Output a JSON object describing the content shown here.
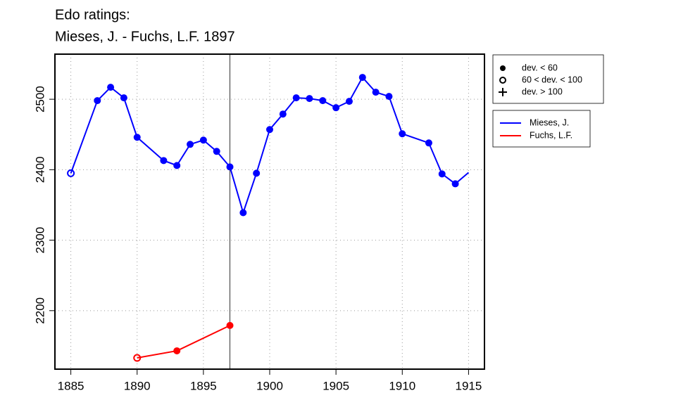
{
  "chart_data": {
    "type": "line",
    "title": "Edo ratings:",
    "subtitle": "Mieses, J. - Fuchs, L.F. 1897",
    "xlim": [
      1883.8,
      1916.2
    ],
    "ylim": [
      2117,
      2564
    ],
    "xticks": [
      1885,
      1890,
      1895,
      1900,
      1905,
      1910,
      1915
    ],
    "yticks": [
      2200,
      2300,
      2400,
      2500
    ],
    "grid": true,
    "vline": 1897,
    "deviation_legend": {
      "labels": [
        "dev. < 60",
        "60 < dev. < 100",
        "dev. > 100"
      ],
      "markers": [
        "solid",
        "open",
        "plus"
      ]
    },
    "legend": "top-right",
    "series": [
      {
        "name": "Mieses, J.",
        "color": "#0000ff",
        "x": [
          1885,
          1887,
          1888,
          1889,
          1890,
          1892,
          1893,
          1894,
          1895,
          1896,
          1897,
          1898,
          1899,
          1900,
          1901,
          1902,
          1903,
          1904,
          1905,
          1906,
          1907,
          1908,
          1909,
          1910,
          1912,
          1913,
          1914,
          1915
        ],
        "values": [
          2395,
          2498,
          2517,
          2502,
          2446,
          2413,
          2406,
          2436,
          2442,
          2426,
          2404,
          2339,
          2395,
          2457,
          2479,
          2502,
          2501,
          2498,
          2488,
          2497,
          2531,
          2510,
          2504,
          2451,
          2438,
          2394,
          2380,
          2396
        ],
        "markers": [
          "open",
          "solid",
          "solid",
          "solid",
          "solid",
          "solid",
          "solid",
          "solid",
          "solid",
          "solid",
          "solid",
          "solid",
          "solid",
          "solid",
          "solid",
          "solid",
          "solid",
          "solid",
          "solid",
          "solid",
          "solid",
          "solid",
          "solid",
          "solid",
          "solid",
          "solid",
          "solid",
          "none"
        ]
      },
      {
        "name": "Fuchs, L.F.",
        "color": "#ff0000",
        "x": [
          1890,
          1893,
          1897
        ],
        "values": [
          2133,
          2143,
          2179
        ],
        "markers": [
          "open",
          "solid",
          "solid"
        ]
      }
    ]
  }
}
